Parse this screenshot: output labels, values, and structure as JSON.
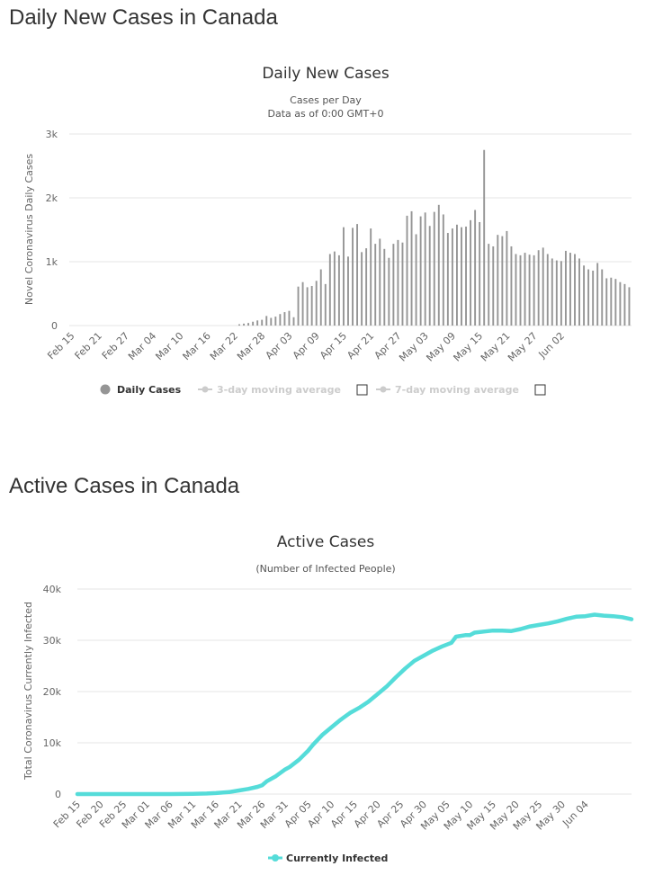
{
  "sections": [
    {
      "title": "Daily New Cases in Canada"
    },
    {
      "title": "Active Cases in Canada"
    }
  ],
  "colors": {
    "bar": "#959595",
    "line": "#55dcd9",
    "legend_dim": "#cccccc"
  },
  "chart_data": [
    {
      "type": "bar",
      "title": "Daily New Cases",
      "subtitle_lines": [
        "Cases per Day",
        "Data as of 0:00 GMT+0"
      ],
      "xlabel": "",
      "ylabel": "Novel Coronavirus Daily Cases",
      "ylim": [
        0,
        3000
      ],
      "yticks": [
        0,
        1000,
        2000,
        3000
      ],
      "ytick_labels": [
        "0",
        "1k",
        "2k",
        "3k"
      ],
      "x_tick_labels": [
        "Feb 15",
        "Feb 21",
        "Feb 27",
        "Mar 04",
        "Mar 10",
        "Mar 16",
        "Mar 22",
        "Mar 28",
        "Apr 03",
        "Apr 09",
        "Apr 15",
        "Apr 21",
        "Apr 27",
        "May 03",
        "May 09",
        "May 15",
        "May 21",
        "May 27",
        "Jun 02"
      ],
      "x_tick_every": 6,
      "start_date": "Feb 15",
      "values": [
        0,
        0,
        0,
        0,
        0,
        0,
        0,
        0,
        0,
        0,
        0,
        0,
        0,
        0,
        0,
        0,
        0,
        0,
        0,
        0,
        0,
        0,
        0,
        0,
        0,
        0,
        0,
        0,
        0,
        0,
        0,
        0,
        0,
        0,
        0,
        0,
        0,
        20,
        30,
        40,
        60,
        80,
        90,
        150,
        120,
        140,
        180,
        210,
        230,
        130,
        610,
        680,
        600,
        620,
        700,
        880,
        650,
        1120,
        1160,
        1100,
        1540,
        1080,
        1530,
        1590,
        1150,
        1210,
        1520,
        1280,
        1360,
        1200,
        1060,
        1280,
        1340,
        1300,
        1720,
        1790,
        1430,
        1710,
        1770,
        1560,
        1780,
        1890,
        1740,
        1450,
        1520,
        1580,
        1540,
        1550,
        1650,
        1810,
        1620,
        2750,
        1280,
        1240,
        1420,
        1400,
        1480,
        1240,
        1120,
        1100,
        1140,
        1110,
        1100,
        1180,
        1220,
        1120,
        1050,
        1020,
        1010,
        1170,
        1140,
        1120,
        1050,
        940,
        880,
        860,
        980,
        880,
        740,
        750,
        730,
        680,
        650,
        600
      ],
      "legend": [
        {
          "label": "Daily Cases",
          "active": true
        },
        {
          "label": "3-day moving average",
          "active": false
        },
        {
          "label": "7-day moving average",
          "active": false
        }
      ]
    },
    {
      "type": "line",
      "title": "Active Cases",
      "subtitle_lines": [
        "(Number of Infected People)"
      ],
      "xlabel": "",
      "ylabel": "Total Coronavirus Currently Infected",
      "ylim": [
        0,
        40000
      ],
      "yticks": [
        0,
        10000,
        20000,
        30000,
        40000
      ],
      "ytick_labels": [
        "0",
        "10k",
        "20k",
        "30k",
        "40k"
      ],
      "x_tick_labels": [
        "Feb 15",
        "Feb 20",
        "Feb 25",
        "Mar 01",
        "Mar 06",
        "Mar 11",
        "Mar 16",
        "Mar 21",
        "Mar 26",
        "Mar 31",
        "Apr 05",
        "Apr 10",
        "Apr 15",
        "Apr 20",
        "Apr 25",
        "Apr 30",
        "May 05",
        "May 10",
        "May 15",
        "May 20",
        "May 25",
        "May 30",
        "Jun 04"
      ],
      "x_tick_every": 5,
      "start_date": "Feb 15",
      "anchors": [
        [
          0,
          0
        ],
        [
          20,
          0
        ],
        [
          25,
          50
        ],
        [
          28,
          100
        ],
        [
          30,
          200
        ],
        [
          33,
          400
        ],
        [
          35,
          700
        ],
        [
          37,
          1000
        ],
        [
          39,
          1400
        ],
        [
          40,
          1700
        ],
        [
          41,
          2500
        ],
        [
          43,
          3500
        ],
        [
          45,
          4800
        ],
        [
          46,
          5300
        ],
        [
          48,
          6700
        ],
        [
          50,
          8500
        ],
        [
          51,
          9600
        ],
        [
          53,
          11500
        ],
        [
          55,
          13000
        ],
        [
          57,
          14500
        ],
        [
          59,
          15800
        ],
        [
          61,
          16800
        ],
        [
          63,
          18000
        ],
        [
          65,
          19500
        ],
        [
          67,
          21000
        ],
        [
          69,
          22800
        ],
        [
          71,
          24500
        ],
        [
          73,
          26000
        ],
        [
          75,
          27000
        ],
        [
          77,
          28000
        ],
        [
          79,
          28800
        ],
        [
          81,
          29500
        ],
        [
          82,
          30700
        ],
        [
          84,
          31000
        ],
        [
          85,
          31000
        ],
        [
          86,
          31500
        ],
        [
          88,
          31700
        ],
        [
          90,
          31900
        ],
        [
          92,
          31900
        ],
        [
          94,
          31800
        ],
        [
          96,
          32200
        ],
        [
          98,
          32700
        ],
        [
          100,
          33000
        ],
        [
          102,
          33300
        ],
        [
          104,
          33700
        ],
        [
          106,
          34200
        ],
        [
          108,
          34600
        ],
        [
          110,
          34700
        ],
        [
          112,
          35000
        ],
        [
          114,
          34800
        ],
        [
          116,
          34700
        ],
        [
          118,
          34500
        ],
        [
          120,
          34100
        ]
      ],
      "legend": [
        {
          "label": "Currently Infected",
          "active": true
        }
      ]
    }
  ]
}
